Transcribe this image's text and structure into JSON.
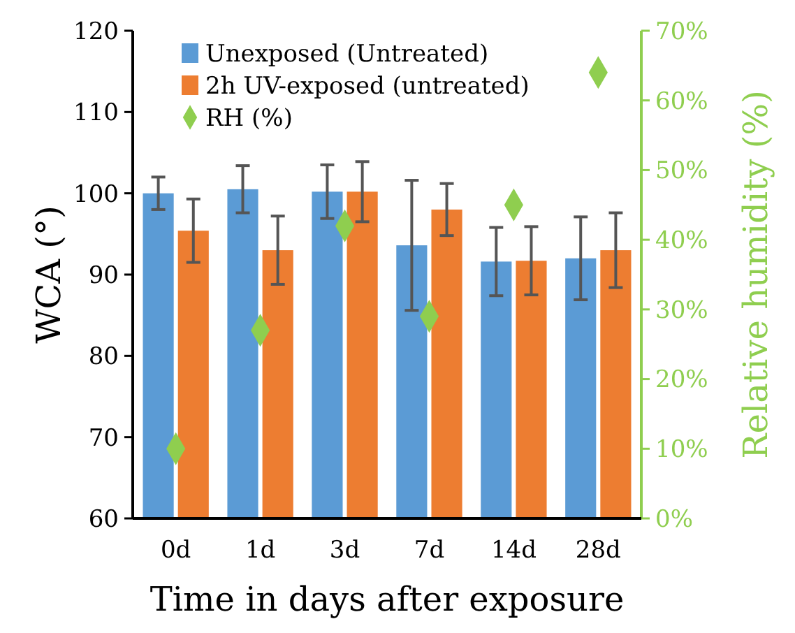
{
  "chart_data": {
    "type": "bar",
    "xlabel": "Time in days after exposure",
    "ylabel": "WCA (°)",
    "y2label": "Relative humidity (%)",
    "categories": [
      "0d",
      "1d",
      "3d",
      "7d",
      "14d",
      "28d"
    ],
    "series": [
      {
        "name": "Unexposed (Untreated)",
        "color": "#5b9bd5",
        "values": [
          100,
          100.5,
          100.2,
          93.6,
          91.6,
          92.0
        ],
        "errors": [
          2,
          2.9,
          3.3,
          8,
          4.2,
          5.1
        ]
      },
      {
        "name": "2h UV-exposed (untreated)",
        "color": "#ed7d31",
        "values": [
          95.4,
          93.0,
          100.2,
          98.0,
          91.7,
          93.0
        ],
        "errors": [
          3.9,
          4.2,
          3.7,
          3.2,
          4.2,
          4.6
        ]
      },
      {
        "name": "RH (%)",
        "type": "scatter",
        "axis": "y2",
        "color": "#8fce4f",
        "marker": "diamond",
        "values": [
          10,
          27,
          42,
          29,
          45,
          64
        ]
      }
    ],
    "ylim": [
      60,
      120
    ],
    "yticks": [
      60,
      70,
      80,
      90,
      100,
      110,
      120
    ],
    "y2lim": [
      0,
      70
    ],
    "y2ticks": [
      {
        "value": 0,
        "label": "0%"
      },
      {
        "value": 10,
        "label": "10%"
      },
      {
        "value": 20,
        "label": "20%"
      },
      {
        "value": 30,
        "label": "30%"
      },
      {
        "value": 40,
        "label": "40%"
      },
      {
        "value": 50,
        "label": "50%"
      },
      {
        "value": 60,
        "label": "60%"
      },
      {
        "value": 70,
        "label": "70%"
      }
    ],
    "legend": "top left",
    "grid": false
  }
}
